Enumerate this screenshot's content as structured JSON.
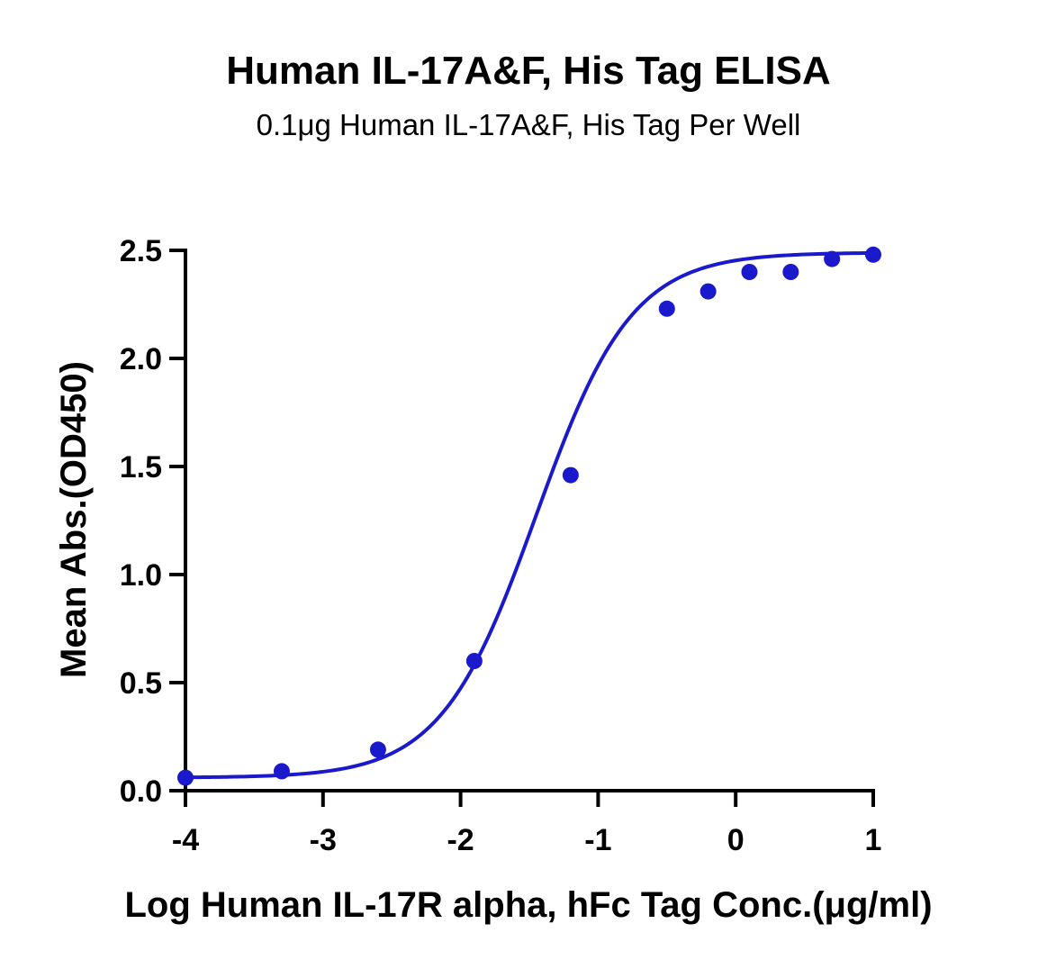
{
  "chart_data": {
    "type": "scatter",
    "title": "Human IL-17A&F, His Tag ELISA",
    "subtitle": "0.1μg Human IL-17A&F, His Tag Per Well",
    "xlabel": "Log Human IL-17R alpha, hFc Tag Conc.(μg/ml)",
    "ylabel": "Mean Abs.(OD450)",
    "xlim": [
      -4,
      1
    ],
    "ylim": [
      0,
      2.5
    ],
    "x_ticks": [
      -4,
      -3,
      -2,
      -1,
      0,
      1
    ],
    "x_tick_labels": [
      "-4",
      "-3",
      "-2",
      "-1",
      "0",
      "1"
    ],
    "y_ticks": [
      0,
      0.5,
      1.0,
      1.5,
      2.0,
      2.5
    ],
    "y_tick_labels": [
      "0.0",
      "0.5",
      "1.0",
      "1.5",
      "2.0",
      "2.5"
    ],
    "grid": false,
    "series": [
      {
        "color": "#1a1acc",
        "x": [
          -4.0,
          -3.3,
          -2.6,
          -1.9,
          -1.2,
          -0.5,
          -0.2,
          0.1,
          0.4,
          0.7,
          1.0
        ],
        "y": [
          0.06,
          0.09,
          0.19,
          0.6,
          1.46,
          2.23,
          2.31,
          2.4,
          2.4,
          2.46,
          2.48
        ]
      }
    ],
    "fit": {
      "model": "4PL",
      "bottom": 0.06,
      "top": 2.49,
      "log_ec50": -1.45,
      "hill": 1.25,
      "color": "#1a1acc"
    }
  }
}
